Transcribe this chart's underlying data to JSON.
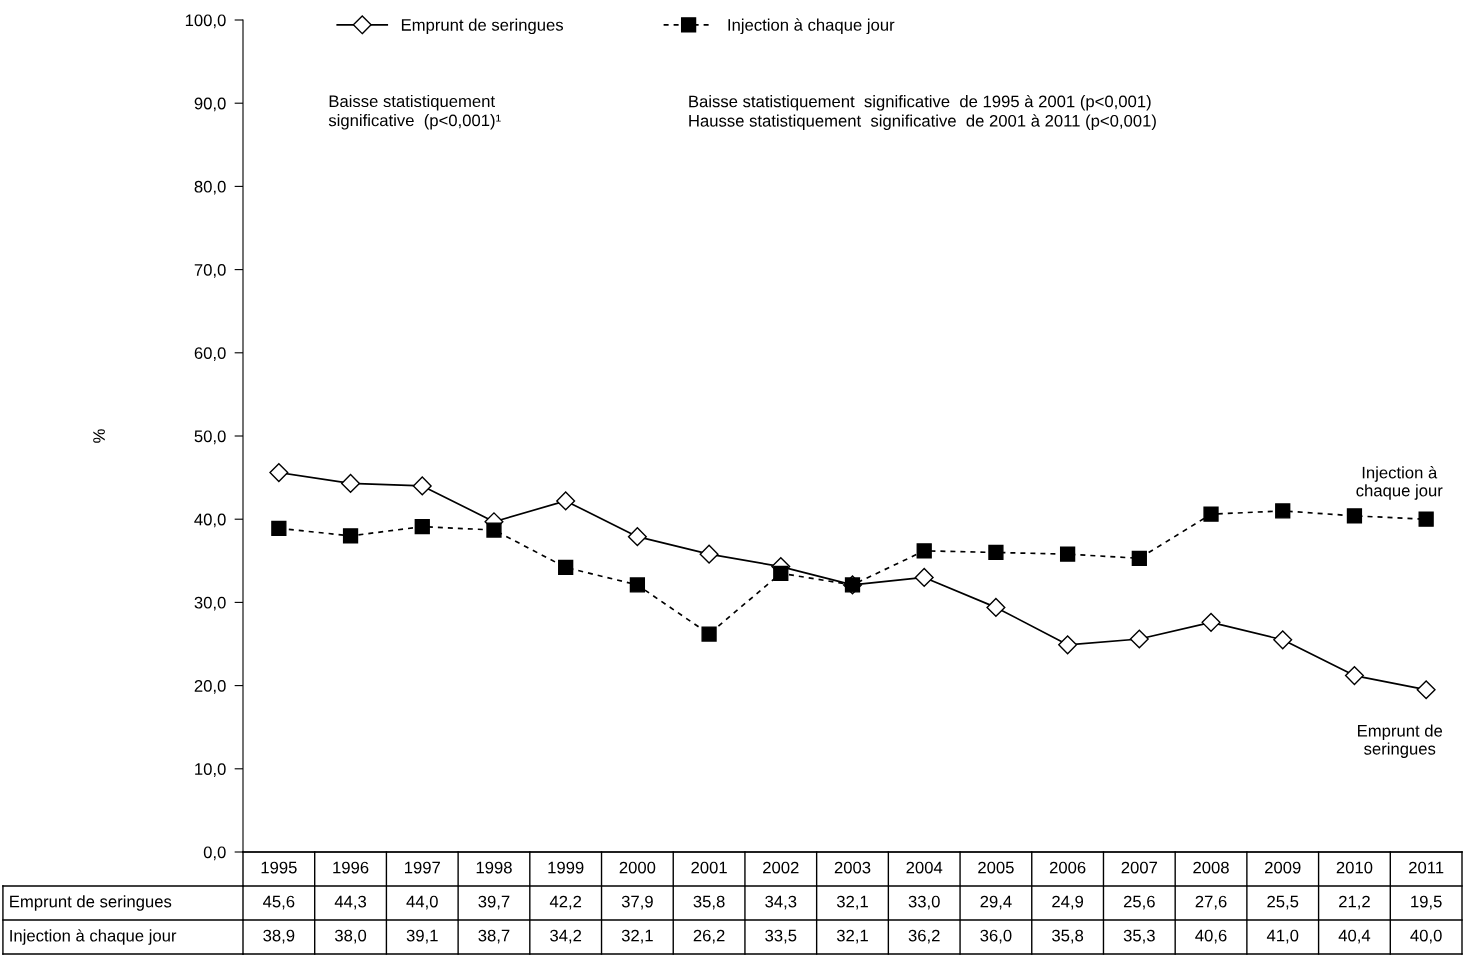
{
  "chart_data": {
    "type": "line",
    "ylabel": "%",
    "categories": [
      "1995",
      "1996",
      "1997",
      "1998",
      "1999",
      "2000",
      "2001",
      "2002",
      "2003",
      "2004",
      "2005",
      "2006",
      "2007",
      "2008",
      "2009",
      "2010",
      "2011"
    ],
    "series": [
      {
        "name": "Emprunt de seringues",
        "color": "#000000",
        "marker": "diamond",
        "line_style": "solid",
        "values": [
          45.6,
          44.3,
          44.0,
          39.7,
          42.2,
          37.9,
          35.8,
          34.3,
          32.1,
          33.0,
          29.4,
          24.9,
          25.6,
          27.6,
          25.5,
          21.2,
          19.5
        ],
        "value_labels": [
          "45,6",
          "44,3",
          "44,0",
          "39,7",
          "42,2",
          "37,9",
          "35,8",
          "34,3",
          "32,1",
          "33,0",
          "29,4",
          "24,9",
          "25,6",
          "27,6",
          "25,5",
          "21,2",
          "19,5"
        ]
      },
      {
        "name": "Injection à chaque jour",
        "color": "#000000",
        "marker": "square",
        "line_style": "dashed",
        "values": [
          38.9,
          38.0,
          39.1,
          38.7,
          34.2,
          32.1,
          26.2,
          33.5,
          32.1,
          36.2,
          36.0,
          35.8,
          35.3,
          40.6,
          41.0,
          40.4,
          40.0
        ],
        "value_labels": [
          "38,9",
          "38,0",
          "39,1",
          "38,7",
          "34,2",
          "32,1",
          "26,2",
          "33,5",
          "32,1",
          "36,2",
          "36,0",
          "35,8",
          "35,3",
          "40,6",
          "41,0",
          "40,4",
          "40,0"
        ]
      }
    ],
    "ylim": [
      0,
      100
    ],
    "yticks": [
      {
        "value": 0,
        "label": "0,0"
      },
      {
        "value": 10,
        "label": "10,0"
      },
      {
        "value": 20,
        "label": "20,0"
      },
      {
        "value": 30,
        "label": "30,0"
      },
      {
        "value": 40,
        "label": "40,0"
      },
      {
        "value": 50,
        "label": "50,0"
      },
      {
        "value": 60,
        "label": "60,0"
      },
      {
        "value": 70,
        "label": "70,0"
      },
      {
        "value": 80,
        "label": "80,0"
      },
      {
        "value": 90,
        "label": "90,0"
      },
      {
        "value": 100,
        "label": "100,0"
      }
    ],
    "grid": false,
    "legend": "top",
    "annotations": [
      "Baisse statistiquement\nsignificative  (p<0,001)¹",
      "Baisse statistiquement  significative  de 1995 à 2001 (p<0,001)\nHausse statistiquement  significative  de 2001 à 2011 (p<0,001)",
      {
        "text": "Injection à\nchaque jour",
        "x": "2011",
        "y": 40.0
      },
      {
        "text": "Emprunt de\nseringues",
        "x": "2011",
        "y": 19.5
      }
    ]
  }
}
